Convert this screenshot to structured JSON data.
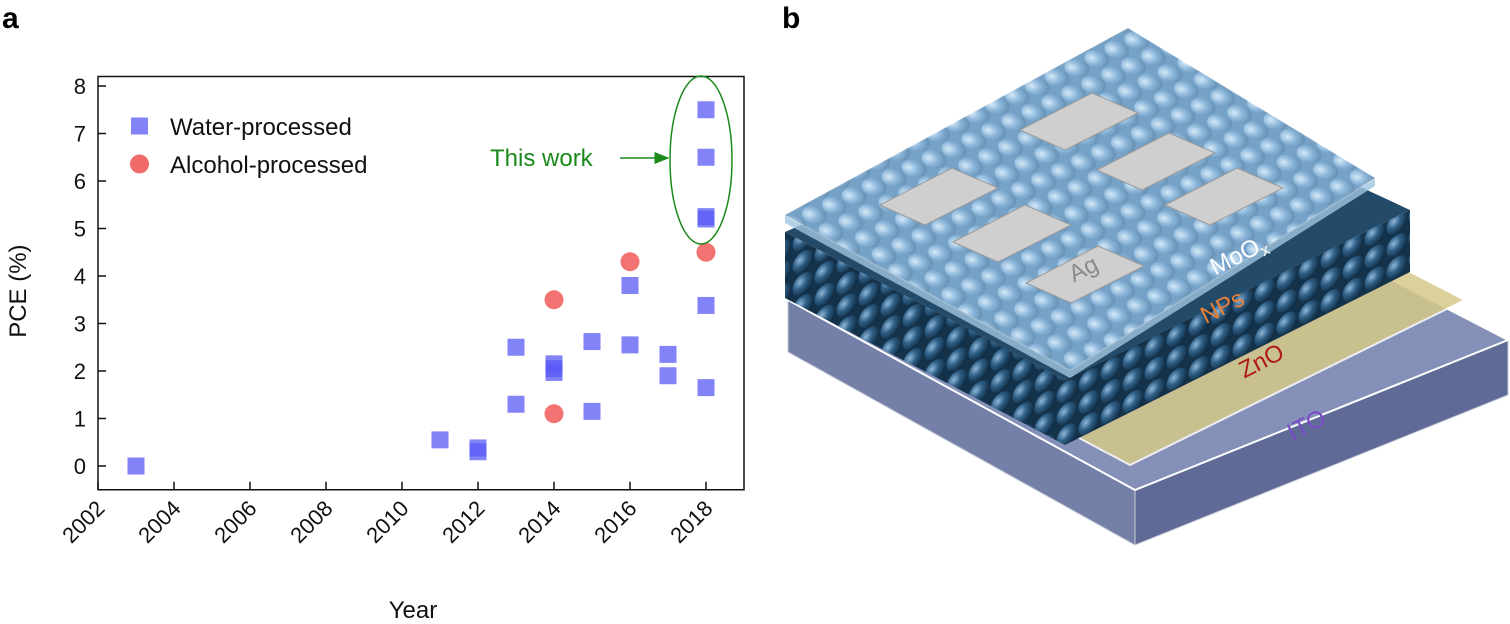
{
  "panel_labels": [
    "a",
    "b"
  ],
  "chart_data": {
    "type": "scatter",
    "xlabel": "Year",
    "ylabel": "PCE (%)",
    "xlim": [
      2002,
      2019
    ],
    "ylim": [
      -0.5,
      8.2
    ],
    "xticks": [
      2002,
      2004,
      2006,
      2008,
      2010,
      2012,
      2014,
      2016,
      2018
    ],
    "yticks": [
      0,
      1,
      2,
      3,
      4,
      5,
      6,
      7,
      8
    ],
    "legend": "upper left",
    "annotation": "This work",
    "annotation_color": "#1a8a1a",
    "series": [
      {
        "name": "Water-processed",
        "marker": "square",
        "color": "#5a5af5",
        "x": [
          2003,
          2011,
          2012,
          2012,
          2013,
          2013,
          2014,
          2014,
          2014,
          2015,
          2015,
          2016,
          2016,
          2017,
          2017,
          2018,
          2018,
          2018,
          2018,
          2018,
          2018
        ],
        "y": [
          0,
          0.55,
          0.3,
          0.38,
          2.5,
          1.3,
          2.15,
          2.05,
          1.97,
          2.62,
          1.15,
          3.8,
          2.55,
          2.35,
          1.9,
          7.5,
          6.5,
          5.25,
          5.2,
          3.38,
          1.65
        ]
      },
      {
        "name": "Alcohol-processed",
        "marker": "circle",
        "color": "#f26b6b",
        "x": [
          2014,
          2014,
          2016,
          2018
        ],
        "y": [
          3.5,
          1.1,
          4.3,
          4.5
        ]
      }
    ]
  },
  "diagram": {
    "ag": "Ag",
    "moox": "MoO",
    "moox_sub": "x",
    "nps": "NPs",
    "zno": "ZnO",
    "ito": "ITO"
  }
}
